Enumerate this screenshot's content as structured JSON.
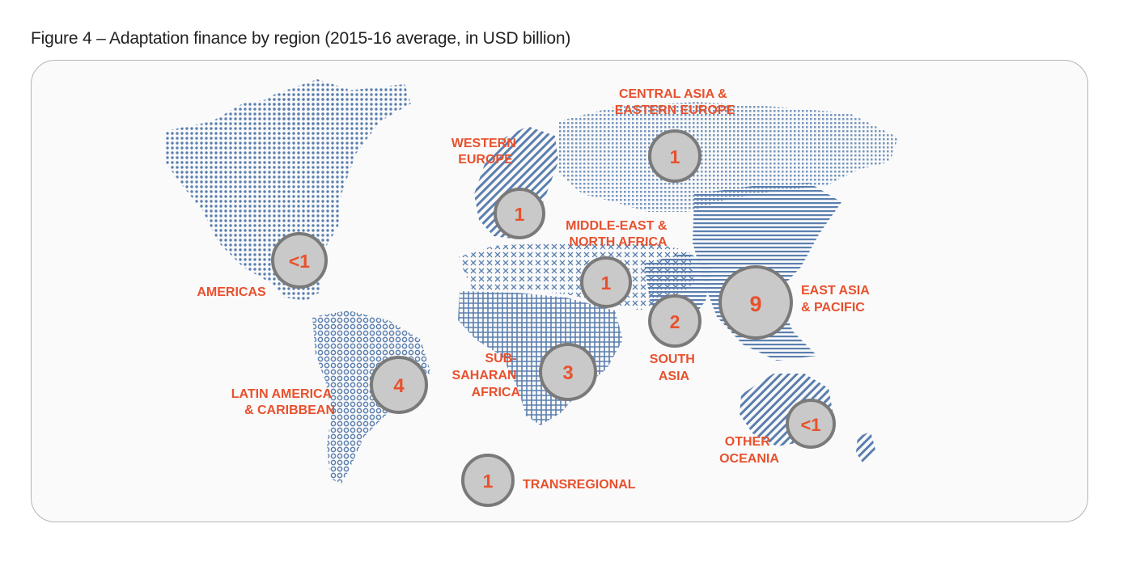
{
  "figure": {
    "title": "Figure 4 – Adaptation finance by region (2015-16 average, in USD billion)"
  },
  "colors": {
    "label": "#e8512d",
    "land": "#5b7fae",
    "bubble_fill": "#c9c9c9",
    "bubble_stroke": "#7a7a7a"
  },
  "regions": [
    {
      "id": "americas",
      "lines": [
        "AMERICAS"
      ],
      "value": "<1"
    },
    {
      "id": "latin-america",
      "lines": [
        "LATIN AMERICA",
        "& CARIBBEAN"
      ],
      "value": "4"
    },
    {
      "id": "western-europe",
      "lines": [
        "WESTERN",
        "EUROPE"
      ],
      "value": "1"
    },
    {
      "id": "central-asia",
      "lines": [
        "CENTRAL ASIA &",
        "EASTERN EUROPE"
      ],
      "value": "1"
    },
    {
      "id": "middle-east",
      "lines": [
        "MIDDLE-EAST &",
        "NORTH AFRICA"
      ],
      "value": "1"
    },
    {
      "id": "sub-saharan",
      "lines": [
        "SUB-",
        "SAHARAN",
        "AFRICA"
      ],
      "value": "3"
    },
    {
      "id": "south-asia",
      "lines": [
        "SOUTH",
        "ASIA"
      ],
      "value": "2"
    },
    {
      "id": "east-asia",
      "lines": [
        "EAST ASIA",
        "& PACIFIC"
      ],
      "value": "9"
    },
    {
      "id": "other-oceania",
      "lines": [
        "OTHER",
        "OCEANIA"
      ],
      "value": "<1"
    },
    {
      "id": "transregional",
      "lines": [
        "TRANSREGIONAL"
      ],
      "value": "1"
    }
  ]
}
